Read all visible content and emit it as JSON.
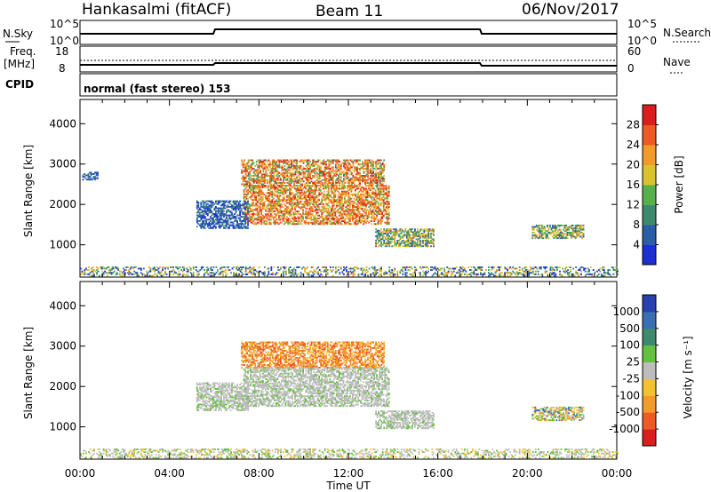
{
  "header": {
    "station": "Hankasalmi (fitACF)",
    "beam": "Beam 11",
    "date": "06/Nov/2017"
  },
  "status_panels": {
    "nsky_label": "N.Sky",
    "nsky_ticks": [
      "10^5",
      "10^0"
    ],
    "nsearch_label": "N.Search",
    "nsearch_ticks": [
      "10^5",
      "10^0"
    ],
    "freq_label_line1": "Freq.",
    "freq_label_line2": "[MHz]",
    "freq_ticks": [
      "18",
      "8"
    ],
    "nave_label": "Nave",
    "nave_ticks": [
      "60",
      "0"
    ],
    "cpid_label": "CPID",
    "cpid_text": "normal (fast stereo) 153"
  },
  "chart_data": [
    {
      "type": "heatmap",
      "name": "power",
      "ylabel": "Slant Range [km]",
      "xlabel": "Time UT",
      "y_ticks": [
        "1000",
        "2000",
        "3000",
        "4000"
      ],
      "ylim": [
        200,
        4600
      ],
      "xlim": [
        0,
        24
      ],
      "x_ticks": [
        "00:00",
        "04:00",
        "08:00",
        "12:00",
        "16:00",
        "20:00",
        "00:00"
      ],
      "colorbar": {
        "label": "Power [dB]",
        "ticks": [
          "4",
          "8",
          "12",
          "16",
          "20",
          "24",
          "28"
        ],
        "colors": [
          "#1c2fd6",
          "#2a5fa8",
          "#3f8a6e",
          "#58b04a",
          "#d9c22d",
          "#f29a2a",
          "#ee5a22",
          "#dc1d1d"
        ]
      },
      "echo_regions": [
        {
          "t0": 7.2,
          "t1": 13.6,
          "r0": 2450,
          "r1": 3100,
          "level": "mixed-high"
        },
        {
          "t0": 7.3,
          "t1": 13.8,
          "r0": 1500,
          "r1": 2450,
          "level": "high"
        },
        {
          "t0": 5.2,
          "t1": 7.5,
          "r0": 1400,
          "r1": 2100,
          "level": "low"
        },
        {
          "t0": 13.2,
          "t1": 15.8,
          "r0": 950,
          "r1": 1400,
          "level": "mid"
        },
        {
          "t0": 20.2,
          "t1": 22.5,
          "r0": 1150,
          "r1": 1500,
          "level": "mid"
        },
        {
          "t0": 0.0,
          "t1": 24.0,
          "r0": 220,
          "r1": 450,
          "level": "noise"
        },
        {
          "t0": 0.1,
          "t1": 0.8,
          "r0": 2600,
          "r1": 2800,
          "level": "low"
        }
      ]
    },
    {
      "type": "heatmap",
      "name": "velocity",
      "ylabel": "Slant Range [km]",
      "xlabel": "Time UT",
      "y_ticks": [
        "1000",
        "2000",
        "3000",
        "4000"
      ],
      "ylim": [
        200,
        4600
      ],
      "xlim": [
        0,
        24
      ],
      "x_ticks": [
        "00:00",
        "04:00",
        "08:00",
        "12:00",
        "16:00",
        "20:00",
        "00:00"
      ],
      "colorbar": {
        "label": "Velocity [m s⁻¹]",
        "ticks": [
          "1000",
          "500",
          "100",
          "25",
          "-25",
          "-100",
          "-500",
          "-1000"
        ],
        "colors": [
          "#2a3fb0",
          "#3b6fb3",
          "#3f8a6e",
          "#66c040",
          "#bdbdbd",
          "#f2c230",
          "#f29a2a",
          "#ee5a22",
          "#dc1d1d"
        ]
      },
      "echo_regions": [
        {
          "t0": 7.2,
          "t1": 13.6,
          "r0": 2450,
          "r1": 3100,
          "level": "negative-strong"
        },
        {
          "t0": 7.3,
          "t1": 13.8,
          "r0": 1500,
          "r1": 2450,
          "level": "near-zero"
        },
        {
          "t0": 5.2,
          "t1": 7.5,
          "r0": 1400,
          "r1": 2100,
          "level": "near-zero"
        },
        {
          "t0": 13.2,
          "t1": 15.8,
          "r0": 950,
          "r1": 1400,
          "level": "near-zero"
        },
        {
          "t0": 20.2,
          "t1": 22.5,
          "r0": 1150,
          "r1": 1500,
          "level": "mixed"
        },
        {
          "t0": 0.0,
          "t1": 24.0,
          "r0": 220,
          "r1": 450,
          "level": "noise"
        }
      ]
    }
  ]
}
